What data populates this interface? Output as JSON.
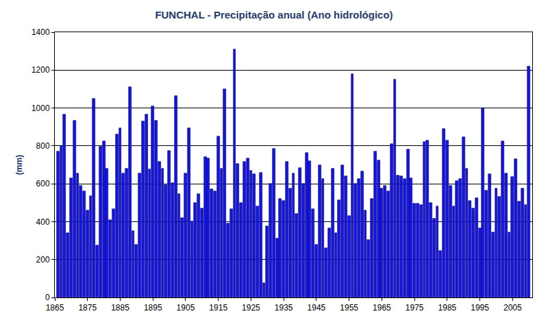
{
  "chart_data": {
    "type": "bar",
    "title": "FUNCHAL - Precipitação anual (Ano hidrológico)",
    "y_label": "(mm)",
    "x": [
      1866,
      1867,
      1868,
      1869,
      1870,
      1871,
      1872,
      1873,
      1874,
      1875,
      1876,
      1877,
      1878,
      1879,
      1880,
      1881,
      1882,
      1883,
      1884,
      1885,
      1886,
      1887,
      1888,
      1889,
      1890,
      1891,
      1892,
      1893,
      1894,
      1895,
      1896,
      1897,
      1898,
      1899,
      1900,
      1901,
      1902,
      1903,
      1904,
      1905,
      1906,
      1907,
      1908,
      1909,
      1910,
      1911,
      1912,
      1913,
      1914,
      1915,
      1916,
      1917,
      1918,
      1919,
      1920,
      1921,
      1922,
      1923,
      1924,
      1925,
      1926,
      1927,
      1928,
      1929,
      1930,
      1931,
      1932,
      1933,
      1934,
      1935,
      1936,
      1937,
      1938,
      1939,
      1940,
      1941,
      1942,
      1943,
      1944,
      1945,
      1946,
      1947,
      1948,
      1949,
      1950,
      1951,
      1952,
      1953,
      1954,
      1955,
      1956,
      1957,
      1958,
      1959,
      1960,
      1961,
      1962,
      1963,
      1964,
      1965,
      1966,
      1967,
      1968,
      1969,
      1970,
      1971,
      1972,
      1973,
      1974,
      1975,
      1976,
      1977,
      1978,
      1979,
      1980,
      1981,
      1982,
      1983,
      1984,
      1985,
      1986,
      1987,
      1988,
      1989,
      1990,
      1991,
      1992,
      1993,
      1994,
      1995,
      1996,
      1997,
      1998,
      1999,
      2000,
      2001,
      2002,
      2003,
      2004,
      2005,
      2006,
      2007,
      2008,
      2009,
      2010
    ],
    "values": [
      770,
      800,
      965,
      340,
      630,
      935,
      655,
      590,
      560,
      460,
      535,
      1050,
      275,
      795,
      825,
      680,
      410,
      465,
      860,
      895,
      655,
      680,
      1110,
      350,
      280,
      655,
      930,
      965,
      675,
      1010,
      935,
      715,
      680,
      595,
      775,
      605,
      1065,
      545,
      420,
      655,
      895,
      400,
      500,
      545,
      470,
      740,
      735,
      570,
      560,
      850,
      680,
      1100,
      390,
      465,
      1310,
      705,
      500,
      715,
      735,
      670,
      650,
      480,
      660,
      75,
      375,
      600,
      785,
      310,
      520,
      510,
      715,
      575,
      655,
      440,
      685,
      600,
      765,
      720,
      465,
      280,
      700,
      625,
      260,
      365,
      680,
      340,
      515,
      700,
      640,
      430,
      1180,
      600,
      625,
      665,
      460,
      305,
      520,
      770,
      725,
      575,
      590,
      560,
      810,
      1150,
      645,
      640,
      625,
      780,
      630,
      495,
      495,
      490,
      820,
      830,
      500,
      415,
      480,
      245,
      890,
      830,
      590,
      480,
      615,
      625,
      845,
      680,
      510,
      470,
      525,
      365,
      1000,
      565,
      650,
      345,
      575,
      530,
      825,
      655,
      345,
      635,
      730,
      505,
      575,
      490,
      1220
    ],
    "color": "#1414e6",
    "xlim": [
      1865,
      2011
    ],
    "xticks": [
      1865,
      1875,
      1885,
      1895,
      1905,
      1915,
      1925,
      1935,
      1945,
      1955,
      1965,
      1975,
      1985,
      1995,
      2005
    ],
    "ylim": [
      0,
      1400
    ],
    "yticks": [
      0,
      200,
      400,
      600,
      800,
      1000,
      1200,
      1400
    ],
    "grid": true
  }
}
